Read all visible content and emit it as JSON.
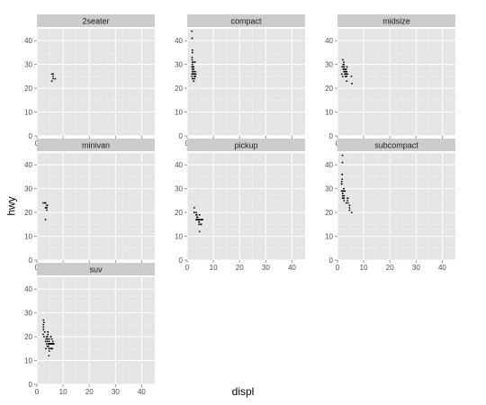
{
  "chart_data": {
    "type": "scatter",
    "layout": "facet_wrap",
    "xlabel": "displ",
    "ylabel": "hwy",
    "xlim": [
      0,
      45
    ],
    "ylim": [
      0,
      45
    ],
    "x_ticks": [
      0,
      10,
      20,
      30,
      40
    ],
    "y_ticks": [
      0,
      10,
      20,
      30,
      40
    ],
    "grid": true,
    "panel_color": "#e5e5e5",
    "strip_color": "#cccccc",
    "point_color": "#000000",
    "panels": [
      {
        "label": "2seater",
        "points": [
          [
            5.7,
            26
          ],
          [
            5.7,
            23
          ],
          [
            6.2,
            26
          ],
          [
            6.2,
            25
          ],
          [
            7.0,
            24
          ],
          [
            6.2,
            24
          ]
        ]
      },
      {
        "label": "compact",
        "points": [
          [
            1.8,
            29
          ],
          [
            1.8,
            29
          ],
          [
            2.0,
            31
          ],
          [
            2.0,
            30
          ],
          [
            2.8,
            26
          ],
          [
            2.8,
            26
          ],
          [
            3.1,
            27
          ],
          [
            1.8,
            26
          ],
          [
            1.8,
            25
          ],
          [
            2.0,
            28
          ],
          [
            2.0,
            27
          ],
          [
            2.8,
            25
          ],
          [
            2.8,
            25
          ],
          [
            3.1,
            25
          ],
          [
            3.1,
            25
          ],
          [
            2.2,
            26
          ],
          [
            2.2,
            29
          ],
          [
            2.4,
            27
          ],
          [
            2.4,
            31
          ],
          [
            3.0,
            31
          ],
          [
            3.0,
            26
          ],
          [
            3.3,
            26
          ],
          [
            1.8,
            44
          ],
          [
            1.9,
            41
          ],
          [
            2.0,
            29
          ],
          [
            2.5,
            26
          ],
          [
            2.5,
            28
          ],
          [
            2.2,
            24
          ],
          [
            2.0,
            24
          ],
          [
            2.5,
            23
          ],
          [
            2.8,
            24
          ],
          [
            1.9,
            33
          ],
          [
            1.9,
            32
          ],
          [
            2.0,
            35
          ],
          [
            2.0,
            36
          ],
          [
            2.5,
            29
          ]
        ]
      },
      {
        "label": "midsize",
        "points": [
          [
            2.8,
            26
          ],
          [
            2.8,
            26
          ],
          [
            3.1,
            26
          ],
          [
            2.4,
            29
          ],
          [
            2.4,
            30
          ],
          [
            3.5,
            26
          ],
          [
            5.3,
            25
          ],
          [
            2.0,
            25
          ],
          [
            2.2,
            28
          ],
          [
            2.7,
            27
          ],
          [
            3.5,
            25
          ],
          [
            3.6,
            29
          ],
          [
            3.1,
            27
          ],
          [
            2.4,
            30
          ],
          [
            3.0,
            28
          ],
          [
            3.3,
            26
          ],
          [
            2.5,
            29
          ],
          [
            2.4,
            31
          ],
          [
            3.3,
            28
          ],
          [
            2.8,
            27
          ],
          [
            3.8,
            26
          ],
          [
            5.5,
            22
          ],
          [
            1.8,
            29
          ],
          [
            2.5,
            27
          ],
          [
            2.0,
            32
          ],
          [
            1.6,
            26
          ],
          [
            2.4,
            28
          ],
          [
            3.5,
            23
          ],
          [
            3.0,
            25
          ],
          [
            2.2,
            30
          ],
          [
            3.5,
            27
          ]
        ]
      },
      {
        "label": "minivan",
        "points": [
          [
            2.4,
            24
          ],
          [
            3.0,
            24
          ],
          [
            3.3,
            22
          ],
          [
            3.3,
            22
          ],
          [
            3.3,
            24
          ],
          [
            3.3,
            24
          ],
          [
            3.3,
            17
          ],
          [
            3.8,
            22
          ],
          [
            3.8,
            21
          ],
          [
            3.8,
            23
          ],
          [
            4.0,
            23
          ]
        ]
      },
      {
        "label": "pickup",
        "points": [
          [
            3.7,
            19
          ],
          [
            3.7,
            18
          ],
          [
            3.9,
            17
          ],
          [
            3.9,
            17
          ],
          [
            4.7,
            19
          ],
          [
            4.7,
            19
          ],
          [
            4.7,
            12
          ],
          [
            5.2,
            17
          ],
          [
            5.2,
            15
          ],
          [
            5.7,
            17
          ],
          [
            5.9,
            17
          ],
          [
            4.2,
            17
          ],
          [
            4.2,
            17
          ],
          [
            4.6,
            16
          ],
          [
            4.6,
            17
          ],
          [
            5.4,
            15
          ],
          [
            5.4,
            17
          ],
          [
            2.7,
            20
          ],
          [
            2.7,
            20
          ],
          [
            2.7,
            22
          ],
          [
            3.4,
            17
          ],
          [
            3.4,
            19
          ],
          [
            4.0,
            18
          ],
          [
            4.7,
            17
          ],
          [
            3.5,
            20
          ],
          [
            4.0,
            17
          ],
          [
            4.5,
            15
          ],
          [
            4.5,
            16
          ]
        ]
      },
      {
        "label": "subcompact",
        "points": [
          [
            3.8,
            26
          ],
          [
            3.8,
            25
          ],
          [
            4.0,
            26
          ],
          [
            4.0,
            24
          ],
          [
            4.6,
            21
          ],
          [
            4.6,
            22
          ],
          [
            4.6,
            23
          ],
          [
            5.4,
            20
          ],
          [
            1.6,
            33
          ],
          [
            1.6,
            32
          ],
          [
            1.6,
            32
          ],
          [
            1.6,
            29
          ],
          [
            1.6,
            32
          ],
          [
            1.8,
            34
          ],
          [
            1.8,
            36
          ],
          [
            1.8,
            36
          ],
          [
            2.0,
            29
          ],
          [
            2.0,
            26
          ],
          [
            2.0,
            27
          ],
          [
            2.4,
            30
          ],
          [
            2.5,
            26
          ],
          [
            2.5,
            27
          ],
          [
            3.3,
            24
          ],
          [
            2.0,
            29
          ],
          [
            2.5,
            29
          ],
          [
            1.9,
            44
          ],
          [
            1.9,
            41
          ],
          [
            2.0,
            26
          ],
          [
            2.0,
            28
          ],
          [
            2.8,
            29
          ],
          [
            2.0,
            27
          ],
          [
            2.5,
            25
          ]
        ]
      },
      {
        "label": "suv",
        "points": [
          [
            5.3,
            20
          ],
          [
            5.3,
            15
          ],
          [
            5.3,
            20
          ],
          [
            5.7,
            17
          ],
          [
            6.0,
            17
          ],
          [
            5.7,
            17
          ],
          [
            6.5,
            17
          ],
          [
            4.0,
            19
          ],
          [
            4.7,
            17
          ],
          [
            4.7,
            19
          ],
          [
            4.7,
            17
          ],
          [
            5.2,
            17
          ],
          [
            5.7,
            19
          ],
          [
            6.1,
            18
          ],
          [
            2.5,
            25
          ],
          [
            2.5,
            24
          ],
          [
            2.7,
            26
          ],
          [
            2.5,
            27
          ],
          [
            2.5,
            23
          ],
          [
            4.4,
            17
          ],
          [
            4.0,
            18
          ],
          [
            4.6,
            15
          ],
          [
            5.4,
            17
          ],
          [
            6.2,
            17
          ],
          [
            4.0,
            19
          ],
          [
            3.7,
            17
          ],
          [
            3.3,
            18
          ],
          [
            2.7,
            20
          ],
          [
            4.7,
            18
          ],
          [
            4.7,
            14
          ],
          [
            3.4,
            15
          ],
          [
            5.4,
            15
          ],
          [
            4.4,
            16
          ],
          [
            5.9,
            15
          ],
          [
            4.6,
            12
          ],
          [
            2.4,
            21
          ],
          [
            3.5,
            19
          ],
          [
            4.2,
            22
          ],
          [
            4.0,
            20
          ],
          [
            3.0,
            22
          ],
          [
            3.7,
            20
          ],
          [
            4.2,
            21
          ],
          [
            5.0,
            17
          ],
          [
            4.0,
            16
          ]
        ]
      }
    ]
  }
}
